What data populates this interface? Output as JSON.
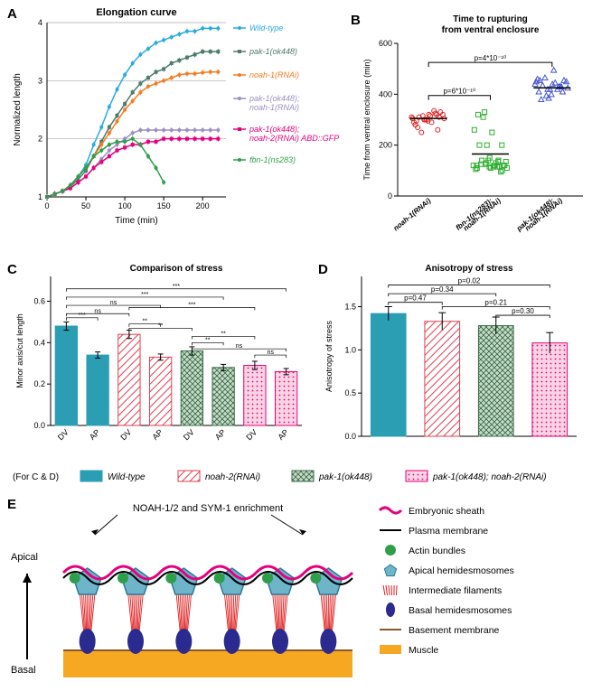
{
  "panelA": {
    "label": "A",
    "title": "Elongation curve",
    "xlabel": "Time (min)",
    "ylabel": "Normalized length",
    "xlim": [
      0,
      230
    ],
    "ylim": [
      1,
      4
    ],
    "xticks": [
      0,
      50,
      100,
      150,
      200
    ],
    "yticks": [
      1,
      2,
      3,
      4
    ],
    "title_fontsize": 11,
    "label_fontsize": 10,
    "series": [
      {
        "name": "Wild-type",
        "color": "#29abe2",
        "marker": "circle",
        "x": [
          0,
          10,
          20,
          30,
          40,
          50,
          60,
          70,
          80,
          90,
          100,
          110,
          120,
          130,
          140,
          150,
          160,
          170,
          180,
          190,
          200,
          210,
          220
        ],
        "y": [
          1,
          1.05,
          1.1,
          1.2,
          1.35,
          1.55,
          1.9,
          2.2,
          2.55,
          2.85,
          3.1,
          3.3,
          3.45,
          3.55,
          3.65,
          3.7,
          3.75,
          3.8,
          3.85,
          3.85,
          3.9,
          3.9,
          3.9
        ]
      },
      {
        "name": "pak-1(ok448)",
        "color": "#4d7c6f",
        "marker": "square",
        "x": [
          0,
          10,
          20,
          30,
          40,
          50,
          60,
          70,
          80,
          90,
          100,
          110,
          120,
          130,
          140,
          150,
          160,
          170,
          180,
          190,
          200,
          210,
          220
        ],
        "y": [
          1,
          1.05,
          1.1,
          1.18,
          1.3,
          1.45,
          1.7,
          1.95,
          2.2,
          2.4,
          2.6,
          2.8,
          2.95,
          3.05,
          3.15,
          3.2,
          3.3,
          3.35,
          3.4,
          3.45,
          3.5,
          3.5,
          3.5
        ]
      },
      {
        "name": "noah-1(RNAi)",
        "color": "#f47b20",
        "marker": "circle",
        "x": [
          0,
          10,
          20,
          30,
          40,
          50,
          60,
          70,
          80,
          90,
          100,
          110,
          120,
          130,
          140,
          150,
          160,
          170,
          180,
          190,
          200,
          210,
          220
        ],
        "y": [
          1,
          1.05,
          1.1,
          1.2,
          1.35,
          1.5,
          1.7,
          1.9,
          2.1,
          2.3,
          2.5,
          2.65,
          2.8,
          2.9,
          2.95,
          3.0,
          3.05,
          3.1,
          3.12,
          3.12,
          3.14,
          3.15,
          3.15
        ]
      },
      {
        "name": "pak-1(ok448); noah-1(RNAi)",
        "color": "#9b8fc4",
        "marker": "circle",
        "x": [
          0,
          10,
          20,
          30,
          40,
          50,
          60,
          70,
          80,
          90,
          100,
          110,
          120,
          130,
          140,
          150,
          160,
          170,
          180,
          190,
          200,
          210,
          220
        ],
        "y": [
          1,
          1.05,
          1.1,
          1.15,
          1.25,
          1.35,
          1.5,
          1.65,
          1.8,
          1.9,
          2.0,
          2.1,
          2.15,
          2.15,
          2.15,
          2.15,
          2.15,
          2.15,
          2.15,
          2.15,
          2.15,
          2.15,
          2.15
        ]
      },
      {
        "name": "pak-1(ok448); noah-2(RNAi) ABD::GFP",
        "color": "#e6007e",
        "marker": "square",
        "x": [
          0,
          10,
          20,
          30,
          40,
          50,
          60,
          70,
          80,
          90,
          100,
          110,
          120,
          130,
          140,
          150,
          160,
          170,
          180,
          190,
          200,
          210,
          220
        ],
        "y": [
          1,
          1.05,
          1.1,
          1.15,
          1.25,
          1.35,
          1.5,
          1.6,
          1.7,
          1.8,
          1.85,
          1.9,
          1.9,
          1.95,
          1.95,
          2.0,
          2.0,
          2.0,
          2.0,
          2.0,
          2.0,
          2.0,
          2.0
        ]
      },
      {
        "name": "fbn-1(ns283)",
        "color": "#2e9e4b",
        "marker": "circle",
        "x": [
          0,
          10,
          20,
          30,
          40,
          50,
          60,
          70,
          80,
          90,
          100,
          110,
          120,
          130,
          140,
          150
        ],
        "y": [
          1,
          1.05,
          1.1,
          1.2,
          1.35,
          1.5,
          1.7,
          1.8,
          1.9,
          1.95,
          1.95,
          2.0,
          1.9,
          1.7,
          1.5,
          1.25
        ]
      }
    ]
  },
  "panelB": {
    "label": "B",
    "title_line1": "Time to rupturing",
    "title_line2": "from ventral enclosure",
    "ylabel": "Time from ventral enclosure (min)",
    "ylim": [
      0,
      600
    ],
    "yticks": [
      0,
      200,
      400,
      600
    ],
    "pvals": [
      {
        "label": "p=6*10⁻¹⁰",
        "from": 0,
        "to": 1,
        "y": 395
      },
      {
        "label": "p=4*10⁻¹⁰",
        "from": 0,
        "to": 2,
        "y": 525
      }
    ],
    "groups": [
      {
        "name": "noah-1(RNAi)",
        "color": "#e02020",
        "marker": "circle",
        "mean": 305,
        "points": [
          310,
          300,
          320,
          280,
          295,
          330,
          310,
          290,
          305,
          315,
          325,
          290,
          300,
          310,
          270,
          315,
          320,
          250,
          335,
          305,
          300,
          260,
          295,
          320
        ]
      },
      {
        "name": "fbn-1(ns283); noah-1(RNAi)",
        "color": "#2eae2e",
        "marker": "square",
        "mean": 165,
        "points": [
          120,
          130,
          140,
          110,
          150,
          100,
          125,
          115,
          135,
          330,
          115,
          105,
          140,
          95,
          200,
          250,
          120,
          310,
          130,
          260,
          200,
          115,
          320,
          110,
          120,
          140,
          120,
          110,
          125,
          135,
          120,
          115,
          200
        ]
      },
      {
        "name": "pak-1(ok448); noah-1(RNAi)",
        "color": "#4455cc",
        "marker": "triangle",
        "mean": 425,
        "points": [
          440,
          420,
          430,
          410,
          400,
          455,
          435,
          445,
          425,
          395,
          430,
          460,
          420,
          410,
          380,
          495,
          450,
          465,
          420,
          450,
          385,
          430,
          455,
          440
        ]
      }
    ]
  },
  "panelC": {
    "label": "C",
    "title": "Comparison of stress",
    "ylabel": "Minor axis/cut length",
    "ylim": [
      0,
      0.65
    ],
    "yticks": [
      0,
      0.2,
      0.4,
      0.6
    ],
    "categories": [
      "DV",
      "AP",
      "DV",
      "AP",
      "DV",
      "AP",
      "DV",
      "AP"
    ],
    "values": [
      0.48,
      0.34,
      0.44,
      0.33,
      0.36,
      0.28,
      0.29,
      0.26
    ],
    "errors": [
      0.02,
      0.015,
      0.02,
      0.015,
      0.02,
      0.015,
      0.02,
      0.015
    ],
    "bars": [
      {
        "fill": "#2b9eb3",
        "pattern": "solid"
      },
      {
        "fill": "#2b9eb3",
        "pattern": "solid"
      },
      {
        "fill": "#ffffff",
        "pattern": "hatch",
        "stroke": "#e04050"
      },
      {
        "fill": "#ffffff",
        "pattern": "hatch",
        "stroke": "#e04050"
      },
      {
        "fill": "#7fa88d",
        "pattern": "cross",
        "stroke": "#3a6b4a"
      },
      {
        "fill": "#7fa88d",
        "pattern": "cross",
        "stroke": "#3a6b4a"
      },
      {
        "fill": "#f4a6c0",
        "pattern": "dots",
        "stroke": "#e6007e"
      },
      {
        "fill": "#f4a6c0",
        "pattern": "dots",
        "stroke": "#e6007e"
      }
    ],
    "sigs": [
      {
        "from": 0,
        "to": 1,
        "label": "***",
        "y": 0.52
      },
      {
        "from": 0,
        "to": 3,
        "label": "ns",
        "y": 0.58
      },
      {
        "from": 0,
        "to": 5,
        "label": "***",
        "y": 0.62
      },
      {
        "from": 0,
        "to": 7,
        "label": "***",
        "y": 0.66
      },
      {
        "from": 2,
        "to": 3,
        "label": "**",
        "y": 0.49
      },
      {
        "from": 4,
        "to": 5,
        "label": "**",
        "y": 0.4
      },
      {
        "from": 6,
        "to": 7,
        "label": "ns",
        "y": 0.34
      },
      {
        "from": 0,
        "to": 2,
        "label": "ns",
        "y": 0.54
      },
      {
        "from": 2,
        "to": 4,
        "label": "**",
        "y": 0.47
      },
      {
        "from": 4,
        "to": 6,
        "label": "**",
        "y": 0.43
      },
      {
        "from": 2,
        "to": 6,
        "label": "***",
        "y": 0.57
      },
      {
        "from": 4,
        "to": 7,
        "label": "ns",
        "y": 0.37
      }
    ]
  },
  "panelD": {
    "label": "D",
    "title": "Anisotropy of stress",
    "ylabel": "Anisotropy of stress",
    "ylim": [
      0,
      1.8
    ],
    "yticks": [
      0,
      0.5,
      1.0,
      1.5
    ],
    "values": [
      1.42,
      1.33,
      1.28,
      1.08
    ],
    "errors": [
      0.08,
      0.1,
      0.1,
      0.12
    ],
    "bars": [
      {
        "fill": "#2b9eb3",
        "pattern": "solid"
      },
      {
        "fill": "#ffffff",
        "pattern": "hatch",
        "stroke": "#e04050"
      },
      {
        "fill": "#7fa88d",
        "pattern": "cross",
        "stroke": "#3a6b4a"
      },
      {
        "fill": "#f4a6c0",
        "pattern": "dots",
        "stroke": "#e6007e"
      }
    ],
    "pvals": [
      {
        "from": 0,
        "to": 1,
        "label": "p=0.47",
        "y": 1.55
      },
      {
        "from": 0,
        "to": 2,
        "label": "p=0.34",
        "y": 1.65
      },
      {
        "from": 0,
        "to": 3,
        "label": "p=0.02",
        "y": 1.75
      },
      {
        "from": 1,
        "to": 3,
        "label": "p=0.21",
        "y": 1.5
      },
      {
        "from": 2,
        "to": 3,
        "label": "p=0.30",
        "y": 1.4
      }
    ]
  },
  "legendCD": {
    "prefix": "(For C & D)",
    "items": [
      {
        "name": "Wild-type",
        "fill": "#2b9eb3",
        "pattern": "solid"
      },
      {
        "name": "noah-2(RNAi)",
        "fill": "#ffffff",
        "pattern": "hatch",
        "stroke": "#e04050"
      },
      {
        "name": "pak-1(ok448)",
        "fill": "#7fa88d",
        "pattern": "cross",
        "stroke": "#3a6b4a"
      },
      {
        "name": "pak-1(ok448); noah-2(RNAi)",
        "fill": "#f4a6c0",
        "pattern": "dots",
        "stroke": "#e6007e"
      }
    ]
  },
  "panelE": {
    "label": "E",
    "annotation": "NOAH-1/2 and SYM-1 enrichment",
    "apical": "Apical",
    "basal": "Basal",
    "legend": [
      {
        "name": "Embryonic sheath",
        "type": "line",
        "color": "#e6007e",
        "thick": 3
      },
      {
        "name": "Plasma membrane",
        "type": "line",
        "color": "#000000",
        "thick": 2
      },
      {
        "name": "Actin bundles",
        "type": "shape",
        "shape": "circle",
        "fill": "#2e9e4b"
      },
      {
        "name": "Apical hemidesmosomes",
        "type": "shape",
        "shape": "pentagon",
        "fill": "#6fb5c9"
      },
      {
        "name": "Intermediate filaments",
        "type": "shape",
        "shape": "filaments",
        "fill": "#e02020"
      },
      {
        "name": "Basal hemidesmosomes",
        "type": "shape",
        "shape": "ellipse",
        "fill": "#2a2a8f"
      },
      {
        "name": "Basement membrane",
        "type": "line",
        "color": "#8b5a2b",
        "thick": 2
      },
      {
        "name": "Muscle",
        "type": "rect",
        "fill": "#f7a823"
      }
    ],
    "colors": {
      "sheath": "#e6007e",
      "membrane": "#000",
      "actin": "#2e9e4b",
      "apicalHemi": "#6fb5c9",
      "apicalHemiStroke": "#2a7a9a",
      "filament": "#e02020",
      "basalHemi": "#2a2a8f",
      "basement": "#8b5a2b",
      "muscle": "#f7a823"
    }
  }
}
